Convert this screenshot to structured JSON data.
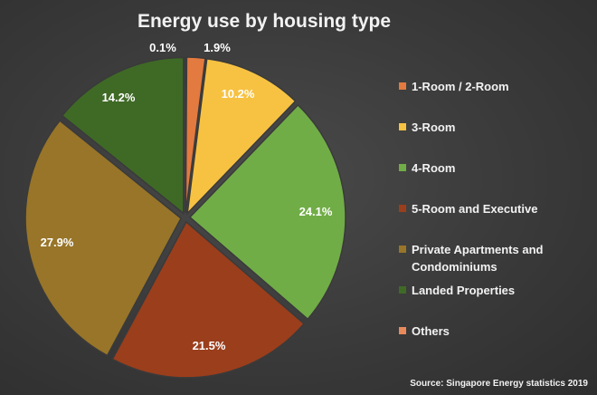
{
  "chart_data": {
    "type": "pie",
    "title": "Energy use by housing type",
    "source": "Source: Singapore Energy statistics 2019",
    "legend_position": "right",
    "slices": [
      {
        "key": "others",
        "name": "Others",
        "legend_lines": [
          "Others"
        ],
        "value": 0.1,
        "label": "0.1%",
        "color": "#e98a5a"
      },
      {
        "key": "room12",
        "name": "1-Room / 2-Room",
        "legend_lines": [
          "1-Room / 2-Room"
        ],
        "value": 1.9,
        "label": "1.9%",
        "color": "#e37a3f"
      },
      {
        "key": "room3",
        "name": "3-Room",
        "legend_lines": [
          "3-Room"
        ],
        "value": 10.2,
        "label": "10.2%",
        "color": "#f7c242"
      },
      {
        "key": "room4",
        "name": "4-Room",
        "legend_lines": [
          "4-Room"
        ],
        "value": 24.1,
        "label": "24.1%",
        "color": "#71ad47"
      },
      {
        "key": "room5",
        "name": "5-Room and Executive",
        "legend_lines": [
          "5-Room and Executive"
        ],
        "value": 21.5,
        "label": "21.5%",
        "color": "#9b3e1c"
      },
      {
        "key": "private",
        "name": "Private Apartments and Condominiums",
        "legend_lines": [
          "Private Apartments and",
          "Condominiums"
        ],
        "value": 27.9,
        "label": "27.9%",
        "color": "#987528"
      },
      {
        "key": "landed",
        "name": "Landed Properties",
        "legend_lines": [
          "Landed Properties"
        ],
        "value": 14.2,
        "label": "14.2%",
        "color": "#3f6a26"
      }
    ],
    "legend_order": [
      "room12",
      "room3",
      "room4",
      "room5",
      "private",
      "landed",
      "others"
    ]
  }
}
